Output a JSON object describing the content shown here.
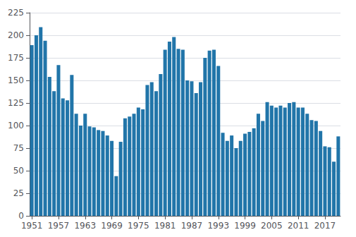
{
  "chart_data": {
    "type": "bar",
    "x": [
      1951,
      1952,
      1953,
      1954,
      1955,
      1956,
      1957,
      1958,
      1959,
      1960,
      1961,
      1962,
      1963,
      1964,
      1965,
      1966,
      1967,
      1968,
      1969,
      1970,
      1971,
      1972,
      1973,
      1974,
      1975,
      1976,
      1977,
      1978,
      1979,
      1980,
      1981,
      1982,
      1983,
      1984,
      1985,
      1986,
      1987,
      1988,
      1989,
      1990,
      1991,
      1992,
      1993,
      1994,
      1995,
      1996,
      1997,
      1998,
      1999,
      2000,
      2001,
      2002,
      2003,
      2004,
      2005,
      2006,
      2007,
      2008,
      2009,
      2010,
      2011,
      2012,
      2013,
      2014,
      2015,
      2016,
      2017,
      2018,
      2019,
      2020
    ],
    "values": [
      189,
      200,
      209,
      194,
      154,
      138,
      167,
      130,
      128,
      156,
      113,
      100,
      113,
      99,
      98,
      95,
      94,
      89,
      83,
      44,
      82,
      108,
      110,
      113,
      120,
      118,
      145,
      148,
      138,
      157,
      184,
      193,
      198,
      185,
      184,
      150,
      149,
      136,
      148,
      175,
      183,
      184,
      166,
      92,
      83,
      89,
      75,
      83,
      91,
      93,
      97,
      113,
      105,
      126,
      122,
      120,
      122,
      120,
      125,
      126,
      120,
      120,
      113,
      106,
      105,
      94,
      77,
      76,
      60,
      88
    ],
    "color": "#2175a9",
    "xlim": [
      1950.5,
      2020.5
    ],
    "xticks": [
      1951,
      1957,
      1963,
      1969,
      1975,
      1981,
      1987,
      1993,
      1999,
      2005,
      2011,
      2017
    ],
    "ylim": [
      0,
      225
    ],
    "yticks": [
      0,
      25,
      50,
      75,
      100,
      125,
      150,
      175,
      200,
      225
    ],
    "grid": true
  }
}
